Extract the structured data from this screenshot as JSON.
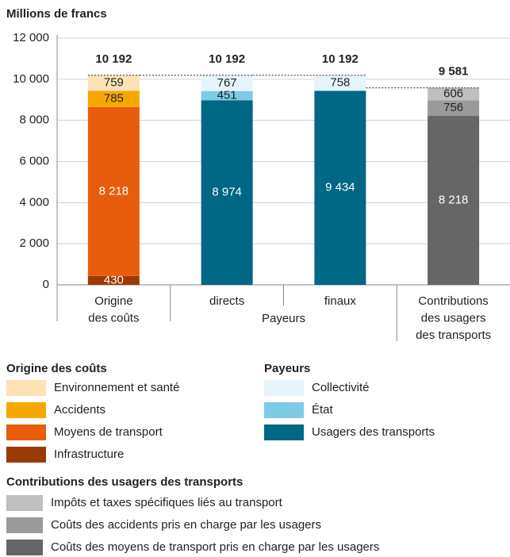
{
  "chart_data": {
    "type": "stacked_bar",
    "ylabel": "Millions de francs",
    "ylim": [
      0,
      12000
    ],
    "yticks": [
      0,
      {
        "value": 2000,
        "label": "2 000"
      },
      {
        "value": 4000,
        "label": "4 000"
      },
      {
        "value": 6000,
        "label": "6 000"
      },
      {
        "value": 8000,
        "label": "8 000"
      },
      {
        "value": 10000,
        "label": "10 000"
      },
      {
        "value": 12000,
        "label": "12 000"
      }
    ],
    "categories": [
      "Origine\ndes coûts",
      "directs",
      "finaux",
      "Contributions\ndes usagers\ndes transports"
    ],
    "category_group": "Payeurs",
    "totals": [
      10192,
      10192,
      10192,
      9581
    ],
    "total_labels": [
      "10 192",
      "10 192",
      "10 192",
      "9 581"
    ],
    "groups": [
      {
        "name": "Origine des coûts",
        "series": [
          {
            "name": "Environnement et santé",
            "color": "#fde2b5",
            "values": [
              759,
              null,
              null,
              null
            ]
          },
          {
            "name": "Accidents",
            "color": "#f5a800",
            "values": [
              785,
              null,
              null,
              null
            ]
          },
          {
            "name": "Moyens de transport",
            "color": "#e85c0d",
            "values": [
              8218,
              null,
              null,
              null
            ],
            "value_labels": [
              "8 218",
              null,
              null,
              null
            ]
          },
          {
            "name": "Infrastructure",
            "color": "#9c3a06",
            "values": [
              430,
              null,
              null,
              null
            ]
          }
        ]
      },
      {
        "name": "Payeurs",
        "series": [
          {
            "name": "Collectivité",
            "color": "#e6f4fc",
            "values": [
              null,
              767,
              758,
              null
            ]
          },
          {
            "name": "État",
            "color": "#7ecbe5",
            "values": [
              null,
              451,
              null,
              null
            ]
          },
          {
            "name": "Usagers des transports",
            "color": "#006784",
            "values": [
              null,
              8974,
              9434,
              null
            ],
            "value_labels": [
              null,
              "8 974",
              "9 434",
              null
            ]
          }
        ]
      },
      {
        "name": "Contributions des usagers des transports",
        "series": [
          {
            "name": "Impôts et taxes spécifiques liés au transport",
            "color": "#bfbfbf",
            "values": [
              null,
              null,
              null,
              606
            ]
          },
          {
            "name": "Coûts des accidents pris en charge par les usagers",
            "color": "#9a9a9a",
            "values": [
              null,
              null,
              null,
              756
            ]
          },
          {
            "name": "Coûts des moyens de transport pris en charge par les usagers",
            "color": "#666666",
            "values": [
              null,
              null,
              null,
              8218
            ],
            "value_labels": [
              null,
              null,
              null,
              "8 218"
            ]
          }
        ]
      }
    ]
  }
}
